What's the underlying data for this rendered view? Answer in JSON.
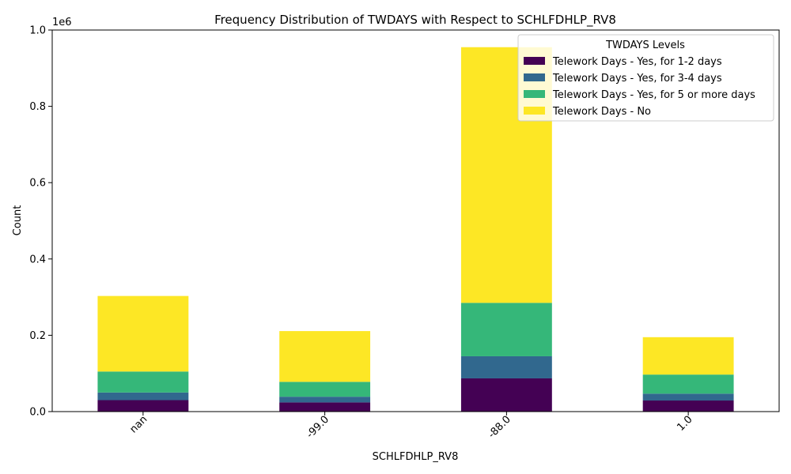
{
  "chart_data": {
    "type": "bar",
    "stacked": true,
    "title": "Frequency Distribution of TWDAYS with Respect to SCHLFDHLP_RV8",
    "xlabel": "SCHLFDHLP_RV8",
    "ylabel": "Count",
    "y_offset_label": "1e6",
    "categories": [
      "nan",
      "-99.0",
      "-88.0",
      "1.0"
    ],
    "ylim": [
      0,
      1000000
    ],
    "yticks": [
      0,
      200000,
      400000,
      600000,
      800000,
      1000000
    ],
    "ytick_labels": [
      "0.0",
      "0.2",
      "0.4",
      "0.6",
      "0.8",
      "1.0"
    ],
    "legend_title": "TWDAYS Levels",
    "legend_position": "upper-right",
    "grid": false,
    "series": [
      {
        "name": "Telework Days - Yes, for 1-2 days",
        "color": "#440154",
        "values": [
          30000,
          24000,
          87000,
          29000
        ]
      },
      {
        "name": "Telework Days - Yes, for 3-4 days",
        "color": "#31688e",
        "values": [
          20000,
          15000,
          58000,
          18000
        ]
      },
      {
        "name": "Telework Days - Yes, for 5 or more days",
        "color": "#35b779",
        "values": [
          55000,
          39000,
          140000,
          50000
        ]
      },
      {
        "name": "Telework Days - No",
        "color": "#fde725",
        "values": [
          198000,
          133000,
          670000,
          98000
        ]
      }
    ]
  }
}
